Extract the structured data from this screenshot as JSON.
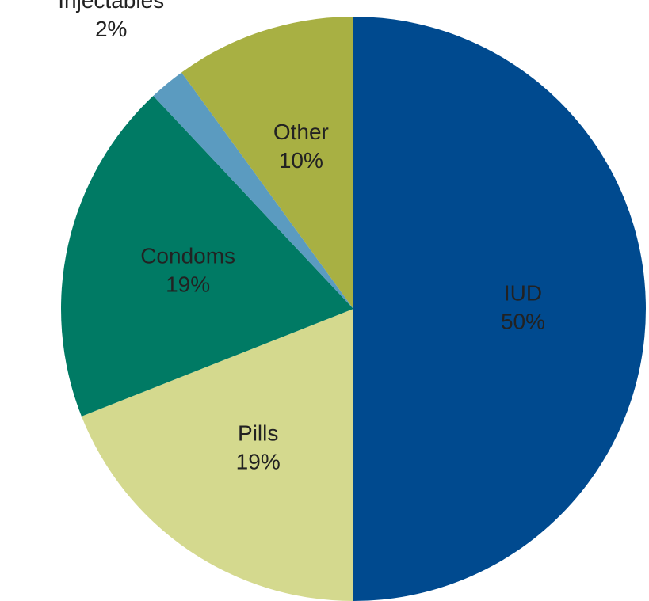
{
  "chart_data": {
    "type": "pie",
    "categories": [
      "IUD",
      "Pills",
      "Condoms",
      "Injectables",
      "Other"
    ],
    "values": [
      50,
      19,
      19,
      2,
      10
    ],
    "value_labels": [
      "50%",
      "19%",
      "19%",
      "2%",
      "10%"
    ],
    "colors": [
      "#004a8f",
      "#d4d98e",
      "#007a64",
      "#5b9bc0",
      "#a8b043"
    ]
  }
}
